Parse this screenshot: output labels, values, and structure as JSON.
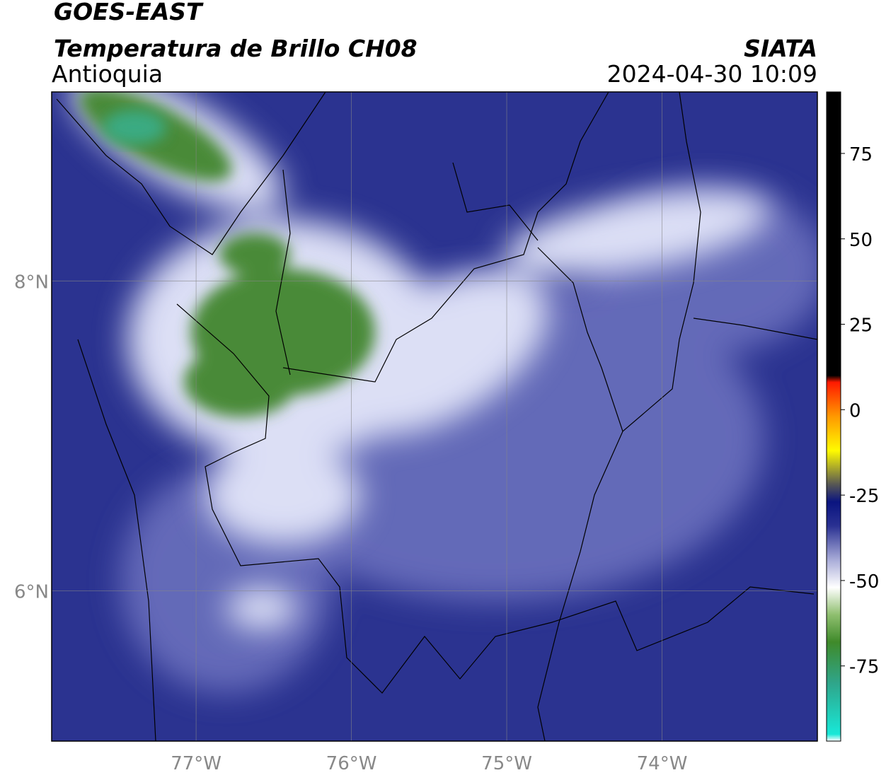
{
  "header": {
    "satellite": "GOES-EAST",
    "title": "Temperatura de Brillo CH08",
    "region": "Antioquia",
    "source": "SIATA",
    "datetime": "2024-04-30 10:09"
  },
  "map": {
    "xlim": [
      -77.93,
      -73.0
    ],
    "ylim": [
      5.03,
      9.22
    ],
    "xticks": [
      {
        "value": -77,
        "label": "77°W"
      },
      {
        "value": -76,
        "label": "76°W"
      },
      {
        "value": -75,
        "label": "75°W"
      },
      {
        "value": -74,
        "label": "74°W"
      }
    ],
    "yticks": [
      {
        "value": 8,
        "label": "8°N"
      },
      {
        "value": 6,
        "label": "6°N"
      }
    ],
    "grid": true
  },
  "colorbar": {
    "lim": [
      -97,
      93
    ],
    "ticks": [
      75,
      50,
      25,
      0,
      -25,
      -50,
      -75
    ],
    "colors": [
      {
        "value": -97,
        "color": "#ffffff"
      },
      {
        "value": -95,
        "color": "#18e8d8"
      },
      {
        "value": -80,
        "color": "#2fa58a"
      },
      {
        "value": -68,
        "color": "#3f8a2a"
      },
      {
        "value": -60,
        "color": "#8fbf6f"
      },
      {
        "value": -52,
        "color": "#ffffff"
      },
      {
        "value": -44,
        "color": "#a9acd8"
      },
      {
        "value": -34,
        "color": "#2a3192"
      },
      {
        "value": -27,
        "color": "#0a1480"
      },
      {
        "value": -22,
        "color": "#555555"
      },
      {
        "value": -12,
        "color": "#fffb00"
      },
      {
        "value": -2,
        "color": "#ff9900"
      },
      {
        "value": 8,
        "color": "#ff1a00"
      },
      {
        "value": 10,
        "color": "#000000"
      },
      {
        "value": 93,
        "color": "#000000"
      }
    ]
  }
}
